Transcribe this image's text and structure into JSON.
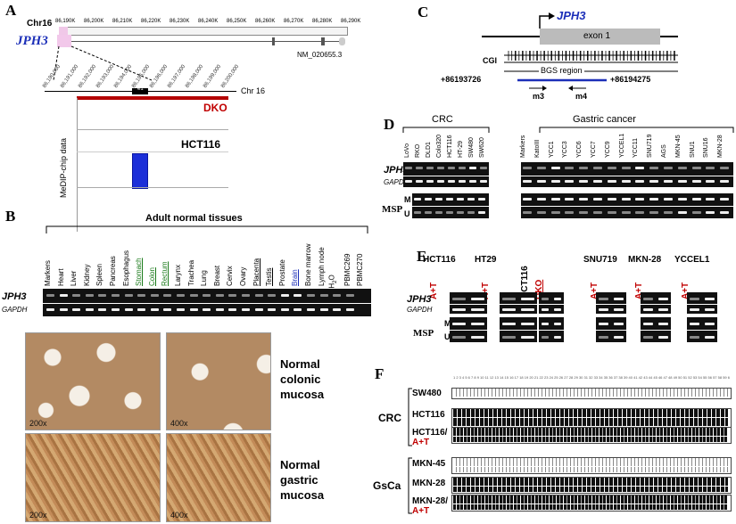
{
  "panels": {
    "a": "A",
    "b": "B",
    "c": "C",
    "d": "D",
    "e": "E",
    "f": "F"
  },
  "panel_a": {
    "chr": "Chr16",
    "coords": [
      "86,190K",
      "86,200K",
      "86,210K",
      "86,220K",
      "86,230K",
      "86,240K",
      "86,250K",
      "86,260K",
      "86,270K",
      "86,280K",
      "86,290K"
    ],
    "gene": "JPH3",
    "refseq": "NM_020655.3",
    "zoom_coords": [
      "86,190,000",
      "86,191,000",
      "86,192,000",
      "86,193,000",
      "86,194,000",
      "86,195,000",
      "86,196,000",
      "86,197,000",
      "86,198,000",
      "86,199,000",
      "86,200,000"
    ],
    "e1": "e1",
    "chr_right": "Chr 16",
    "dko": "DKO",
    "hct116": "HCT116",
    "ylabel": "MeDIP-chip data",
    "signal_value": 1
  },
  "panel_b": {
    "title": "Adult normal tissues",
    "lanes": [
      "Markers",
      "Heart",
      "Liver",
      "Kidney",
      "Spleen",
      "Pancreas",
      "Esophagus",
      "Stomach",
      "Colon",
      "Rectum",
      "Larynx",
      "Trachea",
      "Lung",
      "Breast",
      "Cervix",
      "Ovary",
      "Placenta",
      "Testis",
      "Prostate",
      "Brain",
      "Bone marrow",
      "Lymph node",
      "H2O",
      "PBMC269",
      "PBMC270"
    ],
    "rows": [
      "JPH3",
      "GAPDH"
    ],
    "colonic": "Normal colonic mucosa",
    "gastric": "Normal gastric mucosa",
    "mag1": "200x",
    "mag2": "400x"
  },
  "panel_c": {
    "gene": "JPH3",
    "exon": "exon 1",
    "cgi": "CGI",
    "region": "BGS region",
    "start": "+86193726",
    "end": "+86194275",
    "m3": "m3",
    "m4": "m4"
  },
  "panel_d": {
    "crc": "CRC",
    "gastric": "Gastric cancer",
    "crc_lanes": [
      "LoVo",
      "RKO",
      "DLD1",
      "Colo320",
      "HCT116",
      "HT-29",
      "SW480",
      "SW620"
    ],
    "gc_lanes": [
      "Markers",
      "KatoIII",
      "YCC1",
      "YCC3",
      "YCC6",
      "YCC7",
      "YCC9",
      "YCCEL1",
      "YCC11",
      "SNU719",
      "AGS",
      "MKN-45",
      "SNU1",
      "SNU16",
      "MKN-28"
    ],
    "rows": [
      "JPH3",
      "GAPDH"
    ],
    "msp": "MSP",
    "m": "M",
    "u": "U"
  },
  "panel_e": {
    "groups": [
      "HCT116",
      "HT29",
      "HCT116",
      "SNU719",
      "MKN-28",
      "YCCEL1"
    ],
    "at": "A+T",
    "dko": "DKO",
    "rows": [
      "JPH3",
      "GAPDH"
    ],
    "msp": "MSP",
    "m": "M",
    "u": "U"
  },
  "panel_f": {
    "crc": "CRC",
    "gsca": "GsCa",
    "samples": [
      "SW480",
      "HCT116",
      "HCT116/",
      "MKN-45",
      "MKN-28",
      "MKN-28/"
    ],
    "at": "A+T"
  }
}
